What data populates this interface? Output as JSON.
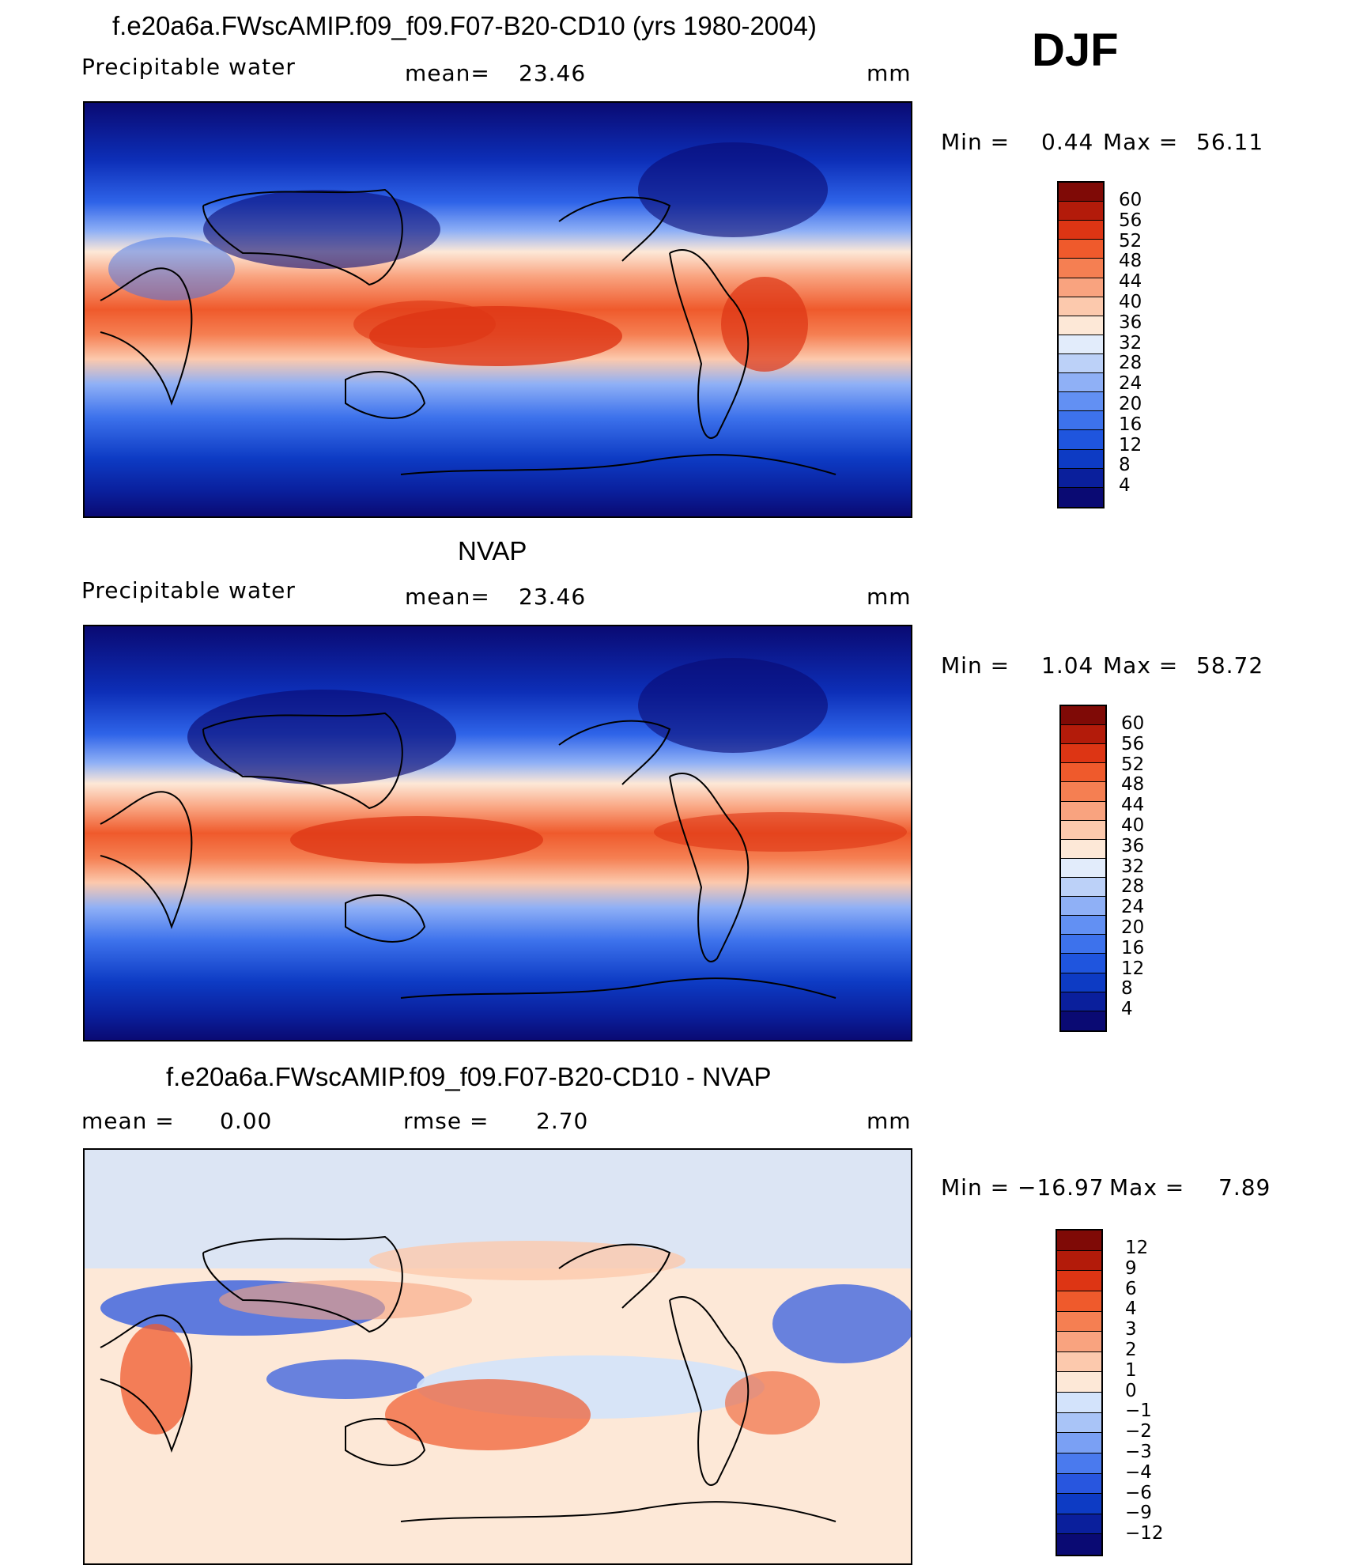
{
  "season": "DJF",
  "colors": {
    "scale14": [
      "#0a0a73",
      "#0a1f9c",
      "#0d3bc4",
      "#1f55de",
      "#3d72ec",
      "#6290f3",
      "#8fb0f6",
      "#bcd1f8",
      "#e2ecfb",
      "#fde8d7",
      "#fcc9ad",
      "#f9a37f",
      "#f57f52",
      "#ef5a2c",
      "#dd3514",
      "#b31b0a",
      "#7f0a06"
    ],
    "diff": [
      "#0a0a73",
      "#0a1f9c",
      "#0d3bc4",
      "#2856df",
      "#4a7aee",
      "#7aa0f4",
      "#a9c4f7",
      "#d3e3fb",
      "#fde8d7",
      "#fcc9ad",
      "#f9a37f",
      "#f57f52",
      "#ef5a2c",
      "#dd3514",
      "#b31b0a",
      "#7f0a06"
    ]
  },
  "panels": [
    {
      "title": "f.e20a6a.FWscAMIP.f09_f09.F07-B20-CD10 (yrs 1980-2004)",
      "left_label": "Precipitable  water",
      "mid_label": "mean=",
      "mid_value": "23.46",
      "units": "mm",
      "minmax": {
        "min_label": "Min  =",
        "min_value": "0.44",
        "max_label": "Max  =",
        "max_value": "56.11"
      },
      "colorbar_ticks": [
        "60",
        "56",
        "52",
        "48",
        "44",
        "40",
        "36",
        "32",
        "28",
        "24",
        "20",
        "16",
        "12",
        "8",
        "4"
      ]
    },
    {
      "title": "NVAP",
      "left_label": "Precipitable  water",
      "mid_label": "mean=",
      "mid_value": "23.46",
      "units": "mm",
      "minmax": {
        "min_label": "Min  =",
        "min_value": "1.04",
        "max_label": "Max  =",
        "max_value": "58.72"
      },
      "colorbar_ticks": [
        "60",
        "56",
        "52",
        "48",
        "44",
        "40",
        "36",
        "32",
        "28",
        "24",
        "20",
        "16",
        "12",
        "8",
        "4"
      ]
    },
    {
      "title": "f.e20a6a.FWscAMIP.f09_f09.F07-B20-CD10 - NVAP",
      "left_label": "mean  =",
      "left_value": "0.00",
      "mid_label": "rmse  =",
      "mid_value": "2.70",
      "units": "mm",
      "minmax": {
        "min_label": "Min  =",
        "min_value": "−16.97",
        "max_label": "Max  =",
        "max_value": "7.89"
      },
      "colorbar_ticks": [
        "12",
        "9",
        "6",
        "4",
        "3",
        "2",
        "1",
        "0",
        "−1",
        "−2",
        "−3",
        "−4",
        "−6",
        "−9",
        "−12"
      ]
    }
  ]
}
